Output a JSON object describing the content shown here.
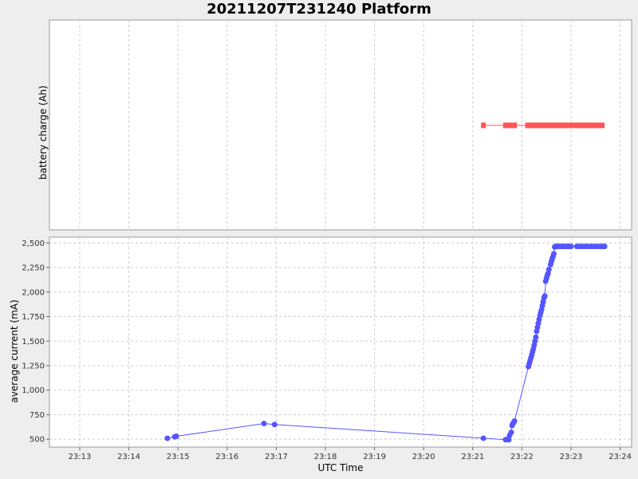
{
  "title": "20211207T231240 Platform",
  "colors": {
    "charge": "#ff5555",
    "current": "#5555ff",
    "grid": "#cccccc",
    "plot_bg": "#ffffff",
    "page_bg": "#eeeeee"
  },
  "chart_data": [
    {
      "type": "line",
      "ylabel": "battery charge (Ah)",
      "yticks": [],
      "grid": true,
      "series": [
        {
          "segments": [
            [
              "23:21:10",
              "23:21:16"
            ],
            [
              "23:21:37",
              "23:21:54"
            ],
            [
              "23:22:04",
              "23:23:41"
            ]
          ],
          "y": 0
        }
      ]
    },
    {
      "type": "line",
      "xlabel": "UTC Time",
      "ylabel": "average current (mA)",
      "xticks": [
        "23:13",
        "23:14",
        "23:15",
        "23:16",
        "23:17",
        "23:18",
        "23:19",
        "23:20",
        "23:21",
        "23:22",
        "23:23",
        "23:24"
      ],
      "yticks": [
        "500",
        "750",
        "1,000",
        "1,250",
        "1,500",
        "1,750",
        "2,000",
        "2,250",
        "2,500"
      ],
      "ylim": [
        420,
        2560
      ],
      "xlim": [
        "23:12:23",
        "23:24:14"
      ],
      "grid": true,
      "series": [
        {
          "x": [
            "23:14:47",
            "23:14:56",
            "23:14:58",
            "23:16:45",
            "23:16:58",
            "23:21:13",
            "23:21:40",
            "23:21:42",
            "23:21:44",
            "23:21:45",
            "23:21:47",
            "23:21:48",
            "23:21:49",
            "23:21:50",
            "23:21:51",
            "23:22:08",
            "23:22:09",
            "23:22:10",
            "23:22:11",
            "23:22:12",
            "23:22:13",
            "23:22:14",
            "23:22:15",
            "23:22:16",
            "23:22:17",
            "23:22:18",
            "23:22:19",
            "23:22:20",
            "23:22:21",
            "23:22:22",
            "23:22:23",
            "23:22:24",
            "23:22:25",
            "23:22:26",
            "23:22:27",
            "23:22:28",
            "23:22:29",
            "23:22:30",
            "23:22:31",
            "23:22:32",
            "23:22:33",
            "23:22:35",
            "23:22:36",
            "23:22:37",
            "23:22:38",
            "23:22:39",
            "23:22:40",
            "23:22:41",
            "23:22:42",
            "23:22:43",
            "23:22:44",
            "23:22:46",
            "23:22:48",
            "23:22:50",
            "23:22:52",
            "23:22:54",
            "23:22:56",
            "23:22:58",
            "23:23:00",
            "23:23:07",
            "23:23:10",
            "23:23:13",
            "23:23:16",
            "23:23:19",
            "23:23:22",
            "23:23:25",
            "23:23:28",
            "23:23:31",
            "23:23:34",
            "23:23:37",
            "23:23:40",
            "23:23:41"
          ],
          "y": [
            510,
            525,
            530,
            660,
            650,
            510,
            495,
            497,
            495,
            540,
            570,
            640,
            660,
            670,
            685,
            1240,
            1270,
            1300,
            1330,
            1360,
            1390,
            1420,
            1460,
            1500,
            1540,
            1600,
            1640,
            1680,
            1720,
            1760,
            1790,
            1820,
            1860,
            1900,
            1940,
            1960,
            2110,
            2140,
            2170,
            2190,
            2230,
            2280,
            2310,
            2340,
            2360,
            2390,
            2460,
            2465,
            2465,
            2465,
            2465,
            2465,
            2465,
            2465,
            2465,
            2465,
            2465,
            2465,
            2465,
            2465,
            2465,
            2465,
            2465,
            2465,
            2465,
            2465,
            2465,
            2465,
            2465,
            2465,
            2465,
            2465
          ]
        }
      ]
    }
  ]
}
